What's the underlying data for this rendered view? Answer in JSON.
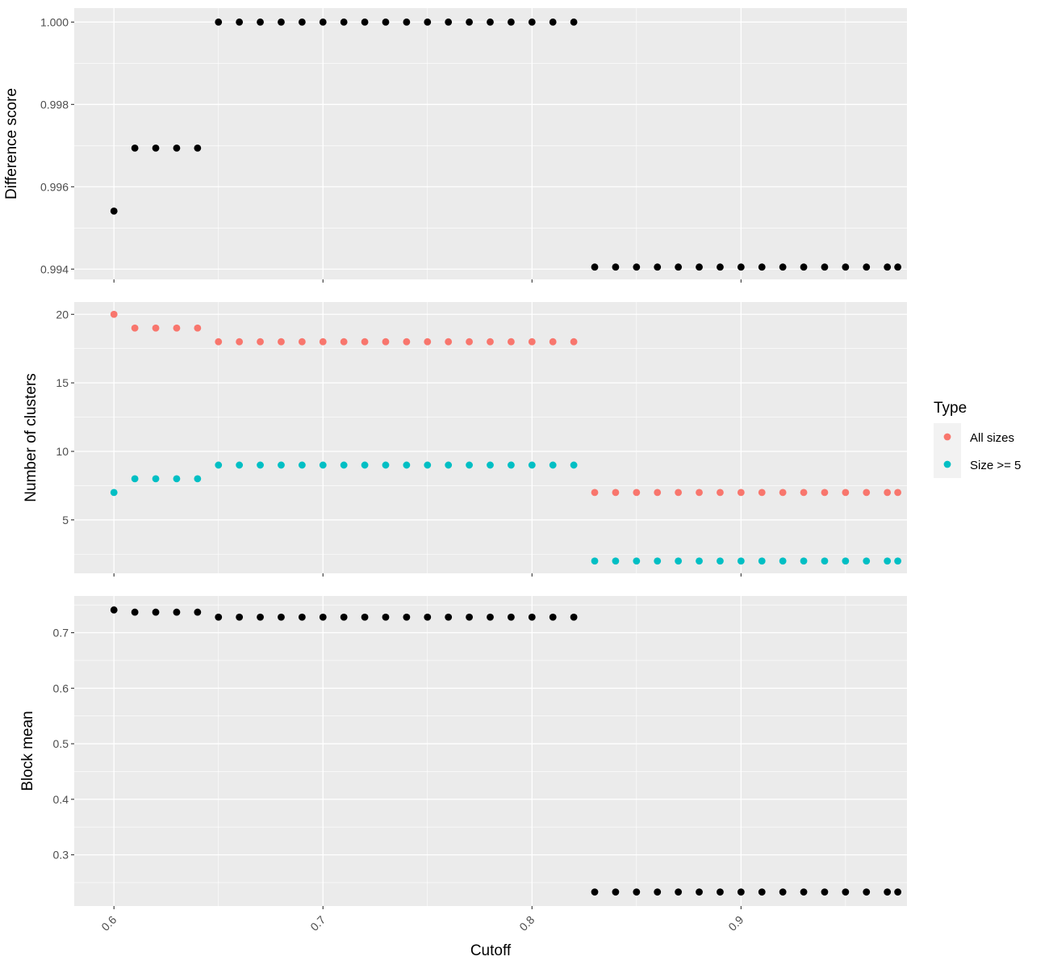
{
  "chart_data": [
    {
      "type": "scatter",
      "ylabel": "Difference score",
      "xlabel": "Cutoff",
      "xlim": [
        0.581,
        0.9794
      ],
      "ylim": [
        0.99375,
        1.00034
      ],
      "y_ticks": [
        0.994,
        0.996,
        0.998,
        1.0
      ],
      "y_tick_labels": [
        "0.994",
        "0.996",
        "0.998",
        "1.000"
      ],
      "grid": true,
      "series": [
        {
          "color": "#000000",
          "x": [
            0.6,
            0.61,
            0.62,
            0.63,
            0.64,
            0.65,
            0.66,
            0.67,
            0.68,
            0.69,
            0.7,
            0.71,
            0.72,
            0.73,
            0.74,
            0.75,
            0.76,
            0.77,
            0.78,
            0.79,
            0.8,
            0.81,
            0.82,
            0.83,
            0.84,
            0.85,
            0.86,
            0.87,
            0.88,
            0.89,
            0.9,
            0.91,
            0.92,
            0.93,
            0.94,
            0.95,
            0.96,
            0.97,
            0.975
          ],
          "y": [
            0.99541,
            0.99694,
            0.99694,
            0.99694,
            0.99694,
            1.0,
            1.0,
            1.0,
            1.0,
            1.0,
            1.0,
            1.0,
            1.0,
            1.0,
            1.0,
            1.0,
            1.0,
            1.0,
            1.0,
            1.0,
            1.0,
            1.0,
            1.0,
            0.99405,
            0.99405,
            0.99405,
            0.99405,
            0.99405,
            0.99405,
            0.99405,
            0.99405,
            0.99405,
            0.99405,
            0.99405,
            0.99405,
            0.99405,
            0.99405,
            0.99405,
            0.99405
          ]
        }
      ]
    },
    {
      "type": "scatter",
      "ylabel": "Number of clusters",
      "xlabel": "Cutoff",
      "xlim": [
        0.581,
        0.9794
      ],
      "ylim": [
        1.1,
        20.9
      ],
      "y_ticks": [
        5,
        10,
        15,
        20
      ],
      "y_tick_labels": [
        "5",
        "10",
        "15",
        "20"
      ],
      "grid": true,
      "legend": {
        "title": "Type",
        "position": "right",
        "entries": [
          {
            "label": "All sizes",
            "color": "#F8766D"
          },
          {
            "label": "Size >= 5",
            "color": "#00BFC4"
          }
        ]
      },
      "series": [
        {
          "name": "All sizes",
          "color": "#F8766D",
          "x": [
            0.6,
            0.61,
            0.62,
            0.63,
            0.64,
            0.65,
            0.66,
            0.67,
            0.68,
            0.69,
            0.7,
            0.71,
            0.72,
            0.73,
            0.74,
            0.75,
            0.76,
            0.77,
            0.78,
            0.79,
            0.8,
            0.81,
            0.82,
            0.83,
            0.84,
            0.85,
            0.86,
            0.87,
            0.88,
            0.89,
            0.9,
            0.91,
            0.92,
            0.93,
            0.94,
            0.95,
            0.96,
            0.97,
            0.975
          ],
          "y": [
            20,
            19,
            19,
            19,
            19,
            18,
            18,
            18,
            18,
            18,
            18,
            18,
            18,
            18,
            18,
            18,
            18,
            18,
            18,
            18,
            18,
            18,
            18,
            7,
            7,
            7,
            7,
            7,
            7,
            7,
            7,
            7,
            7,
            7,
            7,
            7,
            7,
            7,
            7
          ]
        },
        {
          "name": "Size >= 5",
          "color": "#00BFC4",
          "x": [
            0.6,
            0.61,
            0.62,
            0.63,
            0.64,
            0.65,
            0.66,
            0.67,
            0.68,
            0.69,
            0.7,
            0.71,
            0.72,
            0.73,
            0.74,
            0.75,
            0.76,
            0.77,
            0.78,
            0.79,
            0.8,
            0.81,
            0.82,
            0.83,
            0.84,
            0.85,
            0.86,
            0.87,
            0.88,
            0.89,
            0.9,
            0.91,
            0.92,
            0.93,
            0.94,
            0.95,
            0.96,
            0.97,
            0.975
          ],
          "y": [
            7,
            8,
            8,
            8,
            8,
            9,
            9,
            9,
            9,
            9,
            9,
            9,
            9,
            9,
            9,
            9,
            9,
            9,
            9,
            9,
            9,
            9,
            9,
            2,
            2,
            2,
            2,
            2,
            2,
            2,
            2,
            2,
            2,
            2,
            2,
            2,
            2,
            2,
            2
          ]
        }
      ]
    },
    {
      "type": "scatter",
      "ylabel": "Block mean",
      "xlabel": "Cutoff",
      "xlim": [
        0.581,
        0.9794
      ],
      "ylim": [
        0.2078,
        0.7662
      ],
      "y_ticks": [
        0.3,
        0.4,
        0.5,
        0.6,
        0.7
      ],
      "y_tick_labels": [
        "0.3",
        "0.4",
        "0.5",
        "0.6",
        "0.7"
      ],
      "x_ticks": [
        0.6,
        0.7,
        0.8,
        0.9
      ],
      "x_tick_labels": [
        "0.6",
        "0.7",
        "0.8",
        "0.9"
      ],
      "grid": true,
      "series": [
        {
          "color": "#000000",
          "x": [
            0.6,
            0.61,
            0.62,
            0.63,
            0.64,
            0.65,
            0.66,
            0.67,
            0.68,
            0.69,
            0.7,
            0.71,
            0.72,
            0.73,
            0.74,
            0.75,
            0.76,
            0.77,
            0.78,
            0.79,
            0.8,
            0.81,
            0.82,
            0.83,
            0.84,
            0.85,
            0.86,
            0.87,
            0.88,
            0.89,
            0.9,
            0.91,
            0.92,
            0.93,
            0.94,
            0.95,
            0.96,
            0.97,
            0.975
          ],
          "y": [
            0.741,
            0.737,
            0.737,
            0.737,
            0.737,
            0.728,
            0.728,
            0.728,
            0.728,
            0.728,
            0.728,
            0.728,
            0.728,
            0.728,
            0.728,
            0.728,
            0.728,
            0.728,
            0.728,
            0.728,
            0.728,
            0.728,
            0.728,
            0.233,
            0.233,
            0.233,
            0.233,
            0.233,
            0.233,
            0.233,
            0.233,
            0.233,
            0.233,
            0.233,
            0.233,
            0.233,
            0.233,
            0.233,
            0.233
          ]
        }
      ]
    }
  ],
  "shared_xlabel": "Cutoff"
}
